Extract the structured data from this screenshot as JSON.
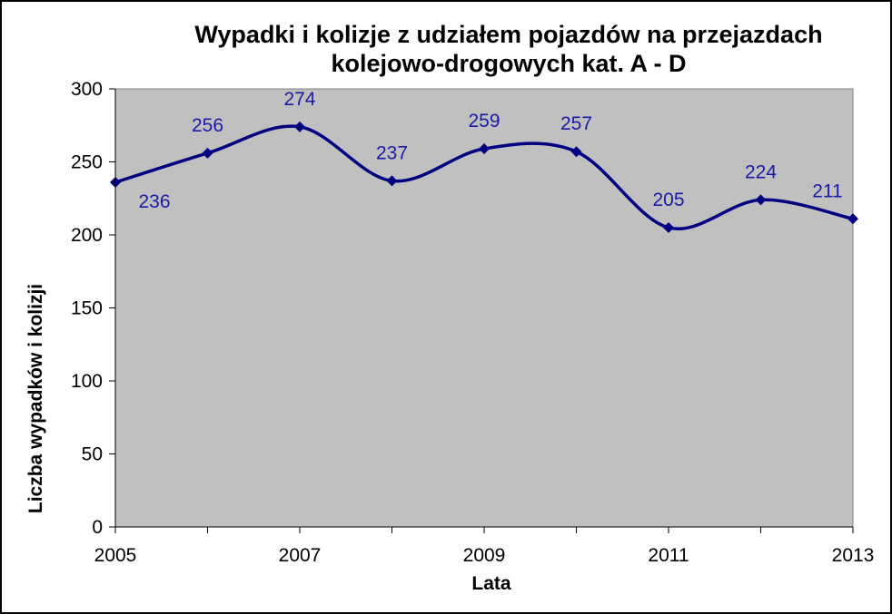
{
  "chart_data": {
    "type": "line",
    "title_lines": [
      "Wypadki i kolizje z udziałem pojazdów  na przejazdach",
      "kolejowo-drogowych  kat. A - D"
    ],
    "xlabel": "Lata",
    "ylabel": "Liczba wypadków i kolizji",
    "x": [
      2005,
      2006,
      2007,
      2008,
      2009,
      2010,
      2011,
      2012,
      2013
    ],
    "x_tick_labels": [
      "2005",
      "2007",
      "2009",
      "2011",
      "2013"
    ],
    "values": [
      236,
      256,
      274,
      237,
      259,
      257,
      205,
      224,
      211
    ],
    "data_labels": [
      "236",
      "256",
      "274",
      "237",
      "259",
      "257",
      "205",
      "224",
      "211"
    ],
    "ylim": [
      0,
      300
    ],
    "y_tick_labels": [
      "0",
      "50",
      "100",
      "150",
      "200",
      "250",
      "300"
    ],
    "grid": false,
    "legend": "none",
    "colors": {
      "line": "#000080",
      "plot_bg": "#c0c0c0",
      "label": "#1a1aa6"
    }
  }
}
